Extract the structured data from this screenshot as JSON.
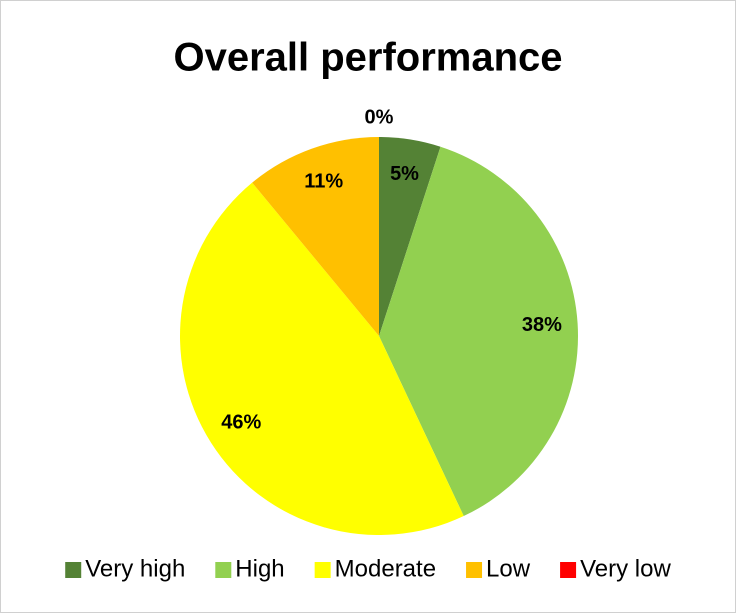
{
  "chart_data": {
    "type": "pie",
    "title": "Overall performance",
    "categories": [
      "Very high",
      "High",
      "Moderate",
      "Low",
      "Very low"
    ],
    "values": [
      5,
      38,
      46,
      11,
      0
    ],
    "value_labels": [
      "5%",
      "38%",
      "46%",
      "11%",
      "0%"
    ],
    "colors": [
      "#548235",
      "#92d050",
      "#ffff00",
      "#ffc000",
      "#ff0000"
    ],
    "legend": "bottom"
  }
}
